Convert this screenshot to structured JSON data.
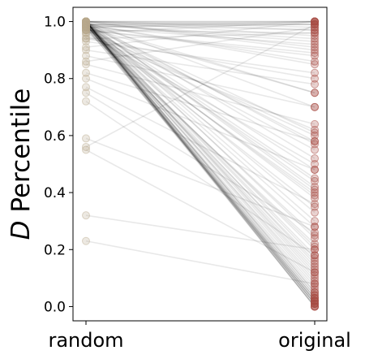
{
  "chart_data": {
    "type": "scatter",
    "categories": [
      "random",
      "original"
    ],
    "ylabel_italic": "D",
    "ylabel_rest": " Percentile",
    "ylim": [
      -0.05,
      1.05
    ],
    "yticks": [
      "0.0",
      "0.2",
      "0.4",
      "0.6",
      "0.8",
      "1.0"
    ],
    "grid": false,
    "line_color": "#000000",
    "random_marker_color": "#b8a98c",
    "original_marker_color": "#a84a42",
    "pairs": [
      [
        1.0,
        0.0
      ],
      [
        1.0,
        0.01
      ],
      [
        1.0,
        0.02
      ],
      [
        1.0,
        0.03
      ],
      [
        1.0,
        0.0
      ],
      [
        0.99,
        0.01
      ],
      [
        0.99,
        0.04
      ],
      [
        1.0,
        0.05
      ],
      [
        0.99,
        0.0
      ],
      [
        1.0,
        0.02
      ],
      [
        0.99,
        0.06
      ],
      [
        1.0,
        0.08
      ],
      [
        0.98,
        0.03
      ],
      [
        0.99,
        0.1
      ],
      [
        1.0,
        0.12
      ],
      [
        0.99,
        0.14
      ],
      [
        0.98,
        0.16
      ],
      [
        1.0,
        0.18
      ],
      [
        0.99,
        0.2
      ],
      [
        0.97,
        0.22
      ],
      [
        0.99,
        0.25
      ],
      [
        1.0,
        0.3
      ],
      [
        0.98,
        0.35
      ],
      [
        0.99,
        0.38
      ],
      [
        0.97,
        0.4
      ],
      [
        1.0,
        0.42
      ],
      [
        0.98,
        0.44
      ],
      [
        0.99,
        0.48
      ],
      [
        0.96,
        0.5
      ],
      [
        1.0,
        0.52
      ],
      [
        0.98,
        0.55
      ],
      [
        0.99,
        0.58
      ],
      [
        0.97,
        0.6
      ],
      [
        0.95,
        0.62
      ],
      [
        1.0,
        0.7
      ],
      [
        0.99,
        0.75
      ],
      [
        0.98,
        0.75
      ],
      [
        0.94,
        0.8
      ],
      [
        0.99,
        0.85
      ],
      [
        0.97,
        0.88
      ],
      [
        1.0,
        0.9
      ],
      [
        0.98,
        0.92
      ],
      [
        0.99,
        0.93
      ],
      [
        1.0,
        0.95
      ],
      [
        0.97,
        0.96
      ],
      [
        0.99,
        0.97
      ],
      [
        1.0,
        0.98
      ],
      [
        0.98,
        0.99
      ],
      [
        1.0,
        1.0
      ],
      [
        0.99,
        1.0
      ],
      [
        1.0,
        1.0
      ],
      [
        0.96,
        1.0
      ],
      [
        0.99,
        0.99
      ],
      [
        1.0,
        0.99
      ],
      [
        0.98,
        1.0
      ],
      [
        1.0,
        0.97
      ],
      [
        0.99,
        0.94
      ],
      [
        1.0,
        0.91
      ],
      [
        0.97,
        0.89
      ],
      [
        0.99,
        0.86
      ],
      [
        0.93,
        0.82
      ],
      [
        0.9,
        0.78
      ],
      [
        0.88,
        0.7
      ],
      [
        0.85,
        0.64
      ],
      [
        0.82,
        0.58
      ],
      [
        0.8,
        0.48
      ],
      [
        0.77,
        0.36
      ],
      [
        0.75,
        0.26
      ],
      [
        0.72,
        0.18
      ],
      [
        0.59,
        0.28
      ],
      [
        0.56,
        0.99
      ],
      [
        0.55,
        0.12
      ],
      [
        0.32,
        0.2
      ],
      [
        0.23,
        0.08
      ],
      [
        0.86,
        0.98
      ],
      [
        0.91,
        1.0
      ],
      [
        0.94,
        0.96
      ],
      [
        1.0,
        0.15
      ],
      [
        1.0,
        0.11
      ],
      [
        0.99,
        0.07
      ],
      [
        1.0,
        0.04
      ],
      [
        0.98,
        0.02
      ],
      [
        1.0,
        0.01
      ],
      [
        0.99,
        0.03
      ],
      [
        1.0,
        0.09
      ],
      [
        0.99,
        0.13
      ],
      [
        1.0,
        0.17
      ],
      [
        0.98,
        0.21
      ],
      [
        1.0,
        0.24
      ],
      [
        0.99,
        0.28
      ],
      [
        1.0,
        0.33
      ],
      [
        0.98,
        0.39
      ],
      [
        1.0,
        0.41
      ],
      [
        0.99,
        0.45
      ],
      [
        1.0,
        0.57
      ],
      [
        0.99,
        0.61
      ],
      [
        1.0,
        0.0
      ],
      [
        1.0,
        0.01
      ],
      [
        0.99,
        0.02
      ],
      [
        1.0,
        0.05
      ]
    ]
  }
}
